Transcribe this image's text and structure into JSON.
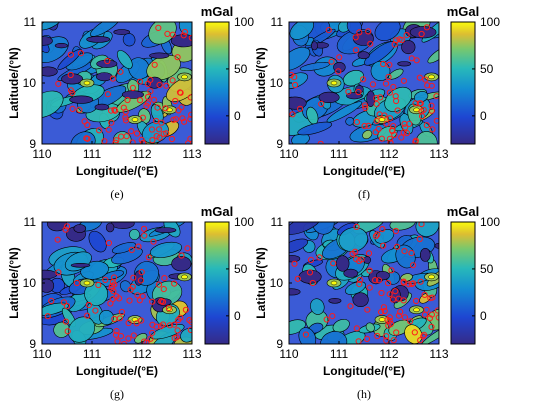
{
  "colors": {
    "deep": "#352a87",
    "mid": "#3b5bd6",
    "cyan": "#33b8c8",
    "green": "#7cc96a",
    "yellow": "#f9fb0e",
    "contour": "#000000",
    "marker": "#ff1a1a"
  },
  "colorbar": {
    "unit": "mGal",
    "ticks": [
      "100",
      "50",
      "0"
    ],
    "range": [
      -30,
      100
    ]
  },
  "chart_data": [
    {
      "type": "heatmap",
      "panel_label": "(e)",
      "xlabel": "Longitude/(°E)",
      "ylabel": "Latitude/(°N)",
      "xlim": [
        110,
        113
      ],
      "ylim": [
        9,
        11
      ],
      "xticks": [
        "110",
        "111",
        "112",
        "113"
      ],
      "yticks": [
        "9",
        "10",
        "11"
      ],
      "seed": 11
    },
    {
      "type": "heatmap",
      "panel_label": "(f)",
      "xlabel": "Longitude/(°E)",
      "ylabel": "Latitude/(°N)",
      "xlim": [
        110,
        113
      ],
      "ylim": [
        9,
        11
      ],
      "xticks": [
        "110",
        "111",
        "112",
        "113"
      ],
      "yticks": [
        "9",
        "10",
        "11"
      ],
      "seed": 23
    },
    {
      "type": "heatmap",
      "panel_label": "(g)",
      "xlabel": "Longitude/(°E)",
      "ylabel": "Latitude/(°N)",
      "xlim": [
        110,
        113
      ],
      "ylim": [
        9,
        11
      ],
      "xticks": [
        "110",
        "111",
        "112",
        "113"
      ],
      "yticks": [
        "9",
        "10",
        "11"
      ],
      "seed": 37
    },
    {
      "type": "heatmap",
      "panel_label": "(h)",
      "xlabel": "Longitude/(°E)",
      "ylabel": "Latitude/(°N)",
      "xlim": [
        110,
        113
      ],
      "ylim": [
        9,
        11
      ],
      "xticks": [
        "110",
        "111",
        "112",
        "113"
      ],
      "yticks": [
        "9",
        "10",
        "11"
      ],
      "seed": 51
    }
  ]
}
